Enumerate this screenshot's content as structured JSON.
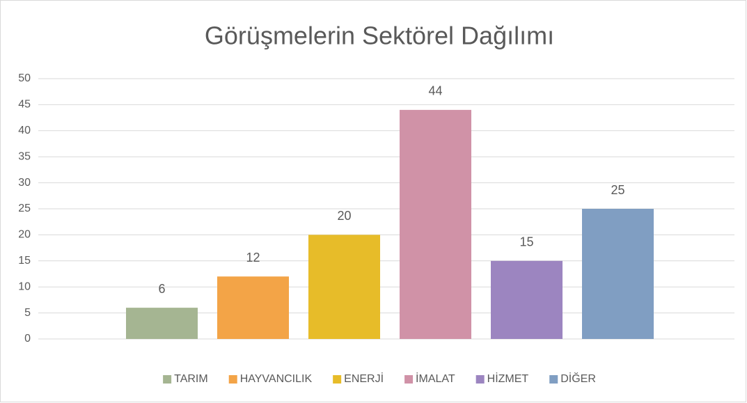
{
  "chart_data": {
    "type": "bar",
    "title": "Görüşmelerin Sektörel Dağılımı",
    "categories": [
      null
    ],
    "series": [
      {
        "name": "TARIM",
        "color": "#a5b592",
        "values": [
          6
        ]
      },
      {
        "name": "HAYVANCILIK",
        "color": "#f3a447",
        "values": [
          12
        ]
      },
      {
        "name": "ENERJİ",
        "color": "#e7bc29",
        "values": [
          20
        ]
      },
      {
        "name": "İMALAT",
        "color": "#d092a7",
        "values": [
          44
        ]
      },
      {
        "name": "HİZMET",
        "color": "#9c85c0",
        "values": [
          15
        ]
      },
      {
        "name": "DİĞER",
        "color": "#809ec2",
        "values": [
          25
        ]
      }
    ],
    "ylim": [
      0,
      50
    ],
    "yticks": [
      0,
      5,
      10,
      15,
      20,
      25,
      30,
      35,
      40,
      45,
      50
    ],
    "grid": true,
    "legend": "bottom"
  }
}
